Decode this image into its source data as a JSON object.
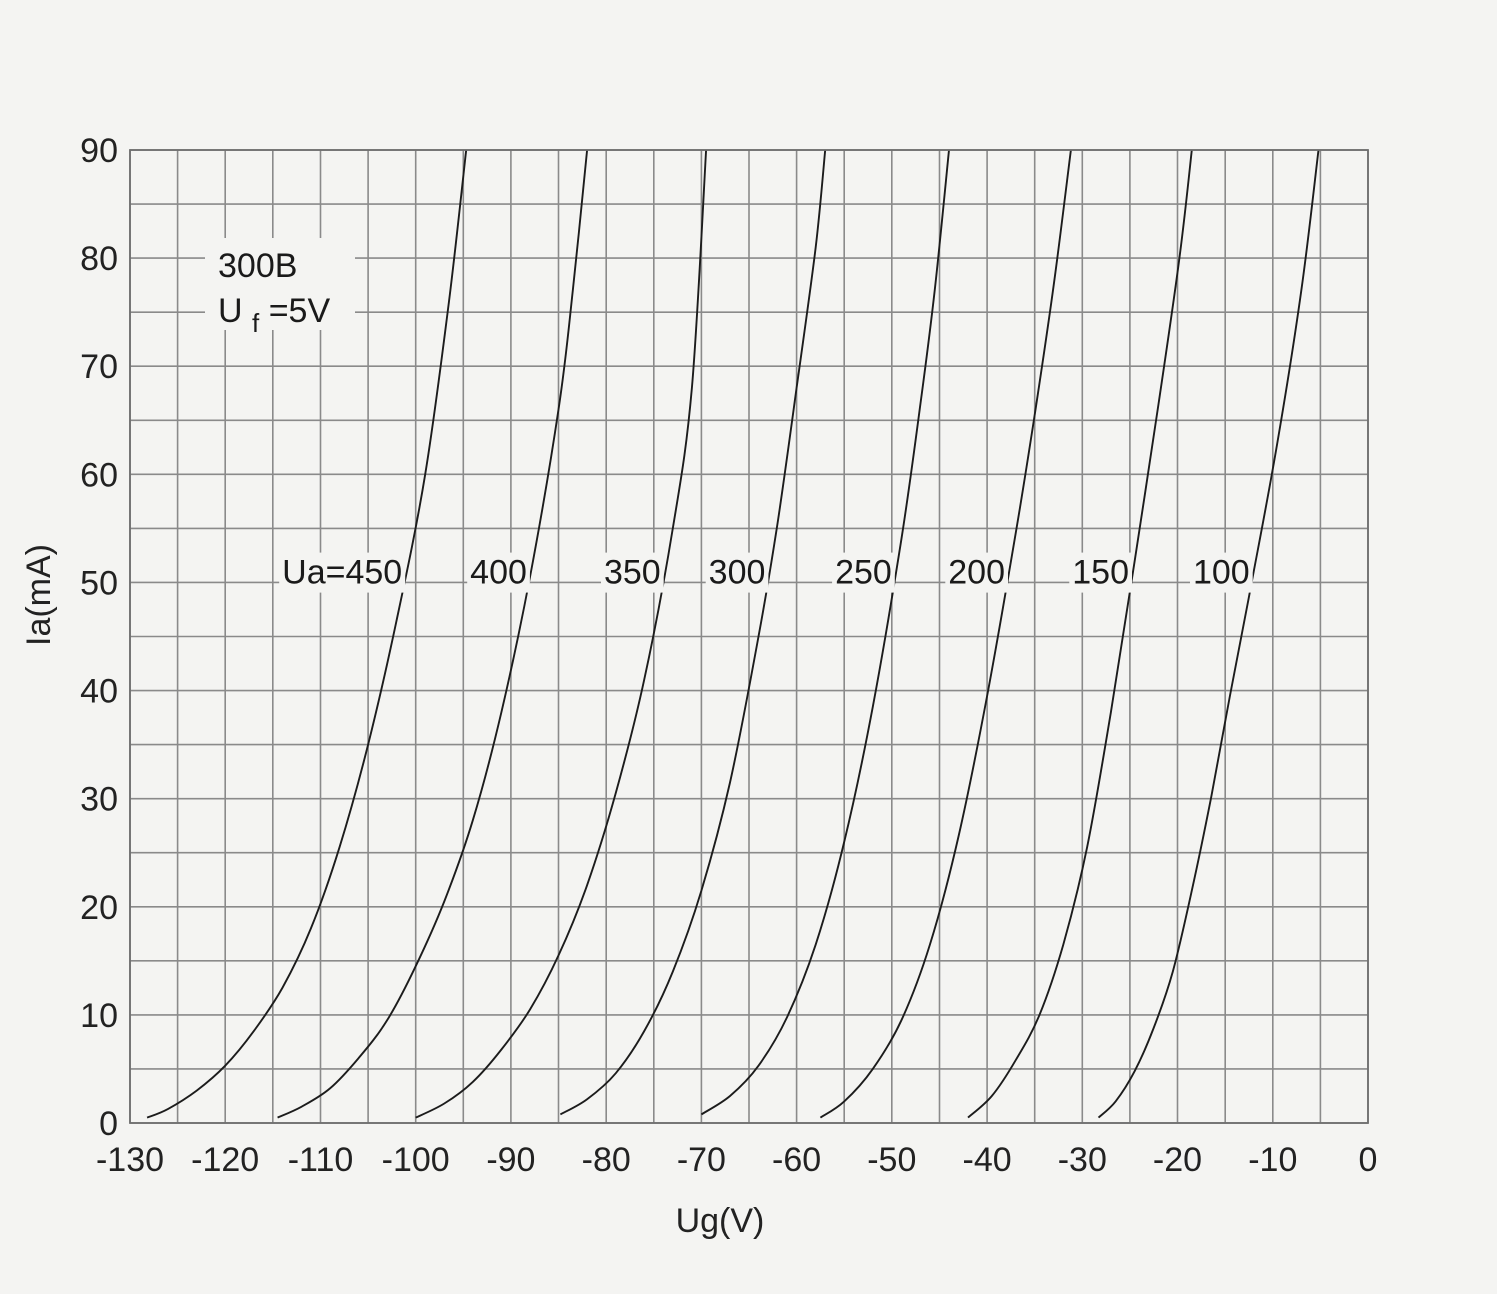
{
  "chart_data": {
    "type": "line",
    "title": "300B",
    "subtitle": {
      "prefix": "U",
      "subscript": "f",
      "suffix": "=5V"
    },
    "xlabel": "Ug(V)",
    "ylabel": "Ia(mA)",
    "xlim": [
      -130,
      0
    ],
    "ylim": [
      0,
      90
    ],
    "xticks": [
      "-130",
      "-120",
      "-110",
      "-100",
      "-90",
      "-80",
      "-70",
      "-60",
      "-50",
      "-40",
      "-30",
      "-20",
      "-10",
      "0"
    ],
    "yticks": [
      "0",
      "10",
      "20",
      "30",
      "40",
      "50",
      "60",
      "70",
      "80",
      "90"
    ],
    "x_minor_step": 5,
    "y_minor_step": 5,
    "grid": true,
    "colors": {
      "background": "#f4f4f2",
      "grid": "#8a8a8a",
      "curve": "#1c1c1c",
      "text": "#222222"
    },
    "series": [
      {
        "name": "Ua=450",
        "x": [
          -128.2,
          -126.0,
          -123.0,
          -120.0,
          -117.0,
          -114.0,
          -111.0,
          -108.0,
          -105.0,
          -102.0,
          -99.0,
          -96.5,
          -94.7
        ],
        "y": [
          0.5,
          1.3,
          3.0,
          5.3,
          8.5,
          12.5,
          18.0,
          25.5,
          35.0,
          46.5,
          60.0,
          76.0,
          90.0
        ]
      },
      {
        "name": "400",
        "x": [
          -114.5,
          -112.0,
          -109.0,
          -106.0,
          -103.0,
          -100.0,
          -97.0,
          -94.0,
          -91.0,
          -88.0,
          -85.0,
          -83.5,
          -82.0
        ],
        "y": [
          0.5,
          1.5,
          3.2,
          6.0,
          9.5,
          14.5,
          20.5,
          28.0,
          38.0,
          50.5,
          66.0,
          77.0,
          90.0
        ]
      },
      {
        "name": "350",
        "x": [
          -100.0,
          -97.0,
          -94.0,
          -91.0,
          -88.0,
          -85.0,
          -82.0,
          -79.0,
          -76.0,
          -73.0,
          -71.0,
          -69.5
        ],
        "y": [
          0.5,
          1.8,
          3.8,
          6.8,
          10.5,
          15.5,
          22.0,
          30.5,
          41.0,
          55.0,
          68.0,
          90.0
        ]
      },
      {
        "name": "300",
        "x": [
          -84.8,
          -82.0,
          -79.0,
          -76.0,
          -73.0,
          -70.0,
          -67.0,
          -64.0,
          -62.0,
          -60.0,
          -58.0,
          -57.0
        ],
        "y": [
          0.8,
          2.2,
          4.6,
          8.5,
          14.0,
          21.5,
          31.5,
          45.0,
          55.5,
          68.0,
          81.0,
          90.0
        ]
      },
      {
        "name": "250",
        "x": [
          -70.0,
          -67.0,
          -64.0,
          -61.0,
          -58.0,
          -55.0,
          -52.0,
          -49.0,
          -47.0,
          -45.5,
          -44.0
        ],
        "y": [
          0.8,
          2.5,
          5.3,
          9.8,
          16.5,
          26.0,
          38.5,
          54.0,
          66.5,
          77.0,
          90.0
        ]
      },
      {
        "name": "200",
        "x": [
          -57.5,
          -55.0,
          -52.0,
          -49.0,
          -46.0,
          -43.0,
          -40.0,
          -37.0,
          -35.0,
          -33.0,
          -31.2
        ],
        "y": [
          0.5,
          2.0,
          5.0,
          9.5,
          16.5,
          26.5,
          39.5,
          54.5,
          65.5,
          77.5,
          90.0
        ]
      },
      {
        "name": "150",
        "x": [
          -42.0,
          -39.5,
          -37.0,
          -34.5,
          -32.0,
          -29.5,
          -27.0,
          -24.5,
          -22.0,
          -19.8,
          -18.5
        ],
        "y": [
          0.5,
          2.5,
          5.8,
          10.0,
          16.5,
          25.5,
          38.0,
          52.0,
          66.5,
          80.0,
          90.0
        ]
      },
      {
        "name": "100",
        "x": [
          -28.3,
          -26.5,
          -24.5,
          -22.5,
          -20.5,
          -18.5,
          -16.5,
          -14.5,
          -12.0,
          -9.5,
          -7.0,
          -5.2
        ],
        "y": [
          0.5,
          2.0,
          4.8,
          8.8,
          14.0,
          21.5,
          30.0,
          39.5,
          51.0,
          63.0,
          77.0,
          90.0
        ]
      }
    ]
  }
}
